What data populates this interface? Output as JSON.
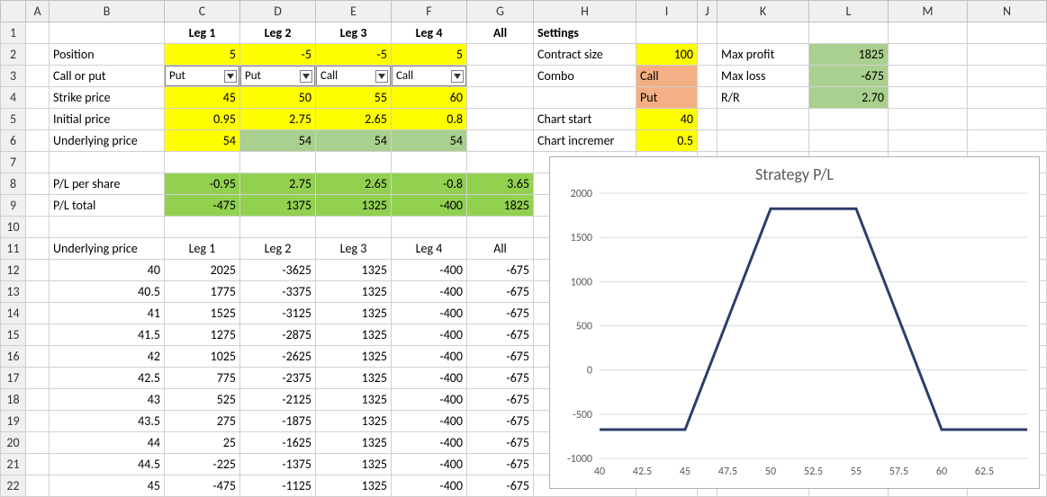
{
  "columns": [
    "A",
    "B",
    "C",
    "D",
    "E",
    "F",
    "G",
    "H",
    "I",
    "J",
    "K",
    "L",
    "M",
    "N"
  ],
  "colWidths": {
    "A": 26,
    "B": 128,
    "C": 84,
    "D": 84,
    "E": 84,
    "F": 84,
    "G": 74,
    "H": 114,
    "I": 68,
    "J": 22,
    "K": 102,
    "L": 88,
    "M": 88,
    "N": 88
  },
  "rowNumbers": [
    1,
    2,
    3,
    4,
    5,
    6,
    7,
    8,
    9,
    10,
    11,
    12,
    13,
    14,
    15,
    16,
    17,
    18,
    19,
    20,
    21,
    22
  ],
  "cells": {
    "1": {
      "C": "Leg 1",
      "D": "Leg 2",
      "E": "Leg 3",
      "F": "Leg 4",
      "G": "All",
      "H": "Settings"
    },
    "2": {
      "B": "Position",
      "C": "5",
      "D": "-5",
      "E": "-5",
      "F": "5",
      "H": "Contract size",
      "I": "100",
      "K": "Max profit",
      "L": "1825"
    },
    "3": {
      "B": "Call or put",
      "C": "Put",
      "D": "Put",
      "E": "Call",
      "F": "Call",
      "H": "Combo",
      "I": "Call",
      "K": "Max loss",
      "L": "-675"
    },
    "4": {
      "B": "Strike price",
      "C": "45",
      "D": "50",
      "E": "55",
      "F": "60",
      "I": "Put",
      "K": "R/R",
      "L": "2.70"
    },
    "5": {
      "B": "Initial price",
      "C": "0.95",
      "D": "2.75",
      "E": "2.65",
      "F": "0.8",
      "H": "Chart start",
      "I": "40"
    },
    "6": {
      "B": "Underlying price",
      "C": "54",
      "D": "54",
      "E": "54",
      "F": "54",
      "H": "Chart incremer",
      "I": "0.5"
    },
    "8": {
      "B": "P/L per share",
      "C": "-0.95",
      "D": "2.75",
      "E": "2.65",
      "F": "-0.8",
      "G": "3.65"
    },
    "9": {
      "B": "P/L total",
      "C": "-475",
      "D": "1375",
      "E": "1325",
      "F": "-400",
      "G": "1825"
    },
    "11": {
      "B": "Underlying price",
      "C": "Leg 1",
      "D": "Leg 2",
      "E": "Leg 3",
      "F": "Leg 4",
      "G": "All"
    },
    "12": {
      "B": "40",
      "C": "2025",
      "D": "-3625",
      "E": "1325",
      "F": "-400",
      "G": "-675"
    },
    "13": {
      "B": "40.5",
      "C": "1775",
      "D": "-3375",
      "E": "1325",
      "F": "-400",
      "G": "-675"
    },
    "14": {
      "B": "41",
      "C": "1525",
      "D": "-3125",
      "E": "1325",
      "F": "-400",
      "G": "-675"
    },
    "15": {
      "B": "41.5",
      "C": "1275",
      "D": "-2875",
      "E": "1325",
      "F": "-400",
      "G": "-675"
    },
    "16": {
      "B": "42",
      "C": "1025",
      "D": "-2625",
      "E": "1325",
      "F": "-400",
      "G": "-675"
    },
    "17": {
      "B": "42.5",
      "C": "775",
      "D": "-2375",
      "E": "1325",
      "F": "-400",
      "G": "-675"
    },
    "18": {
      "B": "43",
      "C": "525",
      "D": "-2125",
      "E": "1325",
      "F": "-400",
      "G": "-675"
    },
    "19": {
      "B": "43.5",
      "C": "275",
      "D": "-1875",
      "E": "1325",
      "F": "-400",
      "G": "-675"
    },
    "20": {
      "B": "44",
      "C": "25",
      "D": "-1625",
      "E": "1325",
      "F": "-400",
      "G": "-675"
    },
    "21": {
      "B": "44.5",
      "C": "-225",
      "D": "-1375",
      "E": "1325",
      "F": "-400",
      "G": "-675"
    },
    "22": {
      "B": "45",
      "C": "-475",
      "D": "-1125",
      "E": "1325",
      "F": "-400",
      "G": "-675"
    }
  },
  "chart": {
    "title": "Strategy P/L",
    "type": "line",
    "background": "#ffffff",
    "series_color": "#2e3e6a",
    "series_width": 3,
    "grid_color": "#d9d9d9",
    "label_color": "#595959",
    "title_fontsize": 18,
    "label_fontsize": 12,
    "x_ticks": [
      40,
      42.5,
      45,
      47.5,
      50,
      52.5,
      55,
      57.5,
      60,
      62.5
    ],
    "x_min": 40,
    "x_max": 65,
    "y_ticks": [
      -1000,
      -500,
      0,
      500,
      1000,
      1500,
      2000
    ],
    "y_min": -1000,
    "y_max": 2000,
    "points": [
      [
        40,
        -675
      ],
      [
        42.5,
        -675
      ],
      [
        45,
        -675
      ],
      [
        47.5,
        575
      ],
      [
        50,
        1825
      ],
      [
        52.5,
        1825
      ],
      [
        55,
        1825
      ],
      [
        57.5,
        575
      ],
      [
        60,
        -675
      ],
      [
        62.5,
        -675
      ],
      [
        65,
        -675
      ]
    ]
  }
}
